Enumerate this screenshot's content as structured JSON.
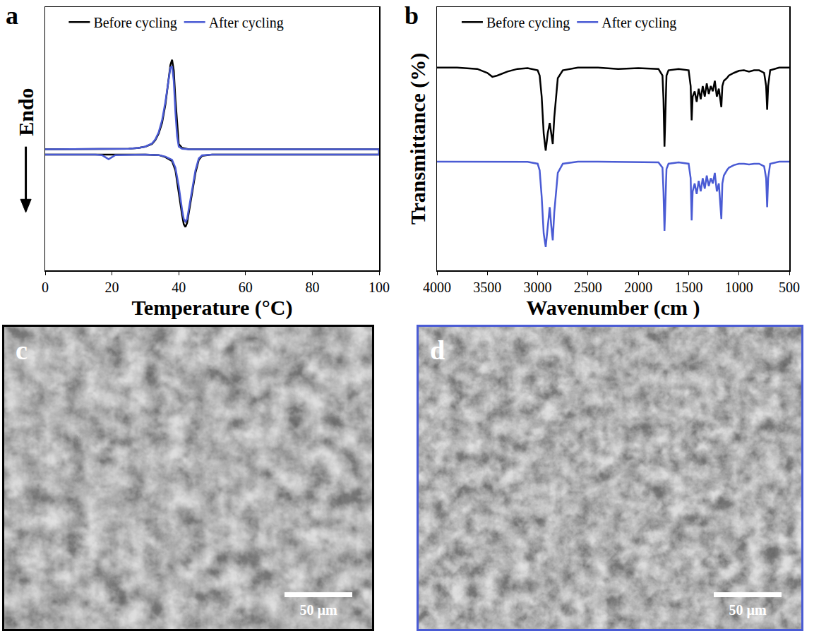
{
  "chart_data": [
    {
      "label": "a",
      "type": "line",
      "xlabel": "Temperature (°C)",
      "ylabel": "Endo",
      "x": [
        0,
        10,
        20,
        25,
        28,
        30,
        32,
        33,
        34,
        35,
        36,
        37,
        37.5,
        38,
        38.5,
        39,
        39.5,
        40,
        41,
        43,
        50,
        60,
        80,
        100,
        100,
        80,
        60,
        50,
        47,
        46,
        45,
        44,
        43,
        42.5,
        42,
        41.5,
        41,
        40,
        39,
        38,
        36,
        34,
        30,
        25,
        21,
        20,
        19,
        18,
        17,
        15,
        10,
        0
      ],
      "series": [
        {
          "name": "Before cycling",
          "color": "#000000",
          "values": [
            4.6,
            4.6,
            4.6,
            4.62,
            4.65,
            4.7,
            4.8,
            4.95,
            5.2,
            5.6,
            6.3,
            7.3,
            7.8,
            8.0,
            7.6,
            6.5,
            5.5,
            4.8,
            4.65,
            4.6,
            4.6,
            4.6,
            4.6,
            4.6,
            4.4,
            4.4,
            4.4,
            4.4,
            4.35,
            4.2,
            3.7,
            2.9,
            2.1,
            1.8,
            1.65,
            1.75,
            2.1,
            3.0,
            3.8,
            4.15,
            4.3,
            4.38,
            4.4,
            4.4,
            4.4,
            4.4,
            4.4,
            4.4,
            4.4,
            4.4,
            4.4,
            4.4
          ]
        },
        {
          "name": "After cycling",
          "color": "#4a5bd4",
          "values": [
            4.6,
            4.6,
            4.6,
            4.62,
            4.65,
            4.7,
            4.82,
            4.98,
            5.25,
            5.7,
            6.4,
            7.3,
            7.7,
            7.75,
            7.2,
            6.0,
            5.1,
            4.7,
            4.62,
            4.6,
            4.6,
            4.6,
            4.6,
            4.6,
            4.4,
            4.4,
            4.4,
            4.4,
            4.37,
            4.25,
            3.8,
            3.05,
            2.3,
            1.95,
            1.85,
            1.95,
            2.3,
            3.2,
            3.9,
            4.2,
            4.32,
            4.38,
            4.4,
            4.4,
            4.38,
            4.3,
            4.22,
            4.3,
            4.38,
            4.4,
            4.4,
            4.4
          ]
        }
      ],
      "xlim": [
        0,
        100
      ],
      "xticks": [
        0,
        20,
        40,
        60,
        80,
        100
      ],
      "ylim": [
        0,
        10
      ],
      "yticks": [],
      "tick_labels": "x",
      "grid": false,
      "legend": "top"
    },
    {
      "label": "b",
      "type": "line",
      "xlabel": "Wavenumber (cm )",
      "ylabel": "Transmittance (%)",
      "x": [
        4000,
        3800,
        3600,
        3500,
        3450,
        3400,
        3300,
        3200,
        3100,
        3000,
        2980,
        2960,
        2940,
        2920,
        2900,
        2880,
        2865,
        2850,
        2835,
        2800,
        2750,
        2600,
        2400,
        2200,
        2000,
        1800,
        1760,
        1750,
        1740,
        1730,
        1720,
        1700,
        1600,
        1500,
        1480,
        1470,
        1460,
        1440,
        1420,
        1400,
        1380,
        1360,
        1340,
        1320,
        1300,
        1280,
        1260,
        1240,
        1220,
        1200,
        1185,
        1175,
        1165,
        1150,
        1120,
        1100,
        1050,
        1000,
        950,
        900,
        850,
        800,
        750,
        730,
        720,
        710,
        690,
        600,
        500
      ],
      "series": [
        {
          "name": "Before cycling",
          "color": "#000000",
          "values": [
            77,
            77,
            76.5,
            75,
            73.5,
            74,
            75.5,
            76.5,
            76.8,
            76,
            74,
            66,
            52,
            45.5,
            52,
            56,
            52,
            48,
            58,
            73,
            76,
            77,
            77,
            76.5,
            76.8,
            76.5,
            74,
            65,
            47,
            62,
            74,
            76,
            76.5,
            76,
            70,
            57,
            66,
            68,
            64,
            69,
            65,
            70,
            66,
            71,
            67,
            70,
            68,
            72,
            66,
            69,
            64,
            62,
            70,
            72,
            73,
            74,
            75,
            75.8,
            76,
            75.5,
            76,
            76,
            75,
            70,
            61,
            70,
            76,
            77,
            77
          ]
        },
        {
          "name": "After cycling",
          "color": "#4a5bd4",
          "values": [
            41.3,
            41.3,
            41.3,
            41.3,
            41.3,
            41.2,
            41.3,
            41.3,
            41.2,
            40.5,
            38,
            28,
            14,
            8.9,
            16,
            24,
            17,
            11.4,
            22,
            37,
            40.5,
            41.3,
            41.3,
            41.2,
            41.3,
            41,
            39,
            30,
            15,
            27,
            38.5,
            40.5,
            41,
            40.5,
            35,
            19,
            30,
            33,
            29,
            34,
            30,
            35,
            31,
            36,
            32,
            35,
            33,
            37,
            30,
            33,
            24,
            19.5,
            33,
            36,
            38,
            39,
            40,
            40.5,
            40.5,
            40.2,
            40.5,
            40.5,
            39.5,
            35,
            24,
            35,
            40.5,
            41.3,
            41.3
          ]
        }
      ],
      "xlim": [
        4000,
        500
      ],
      "xticks": [
        4000,
        3500,
        3000,
        2500,
        2000,
        1500,
        1000,
        500
      ],
      "ylim": [
        0,
        100
      ],
      "yticks": [],
      "tick_labels": "x",
      "grid": false,
      "legend": "top"
    }
  ],
  "images": [
    {
      "label": "c",
      "scale_bar": "50 µm",
      "color": "#000000"
    },
    {
      "label": "d",
      "scale_bar": "50 µm",
      "color": "#4a5bd4"
    }
  ]
}
